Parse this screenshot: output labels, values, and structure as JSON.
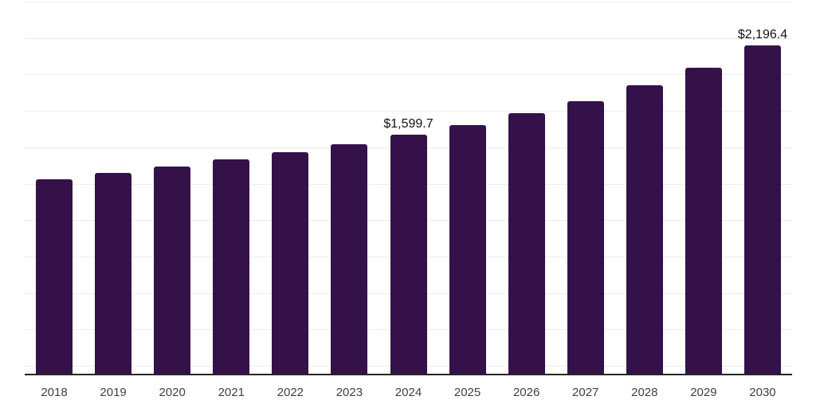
{
  "chart_data": {
    "type": "bar",
    "title": "",
    "xlabel": "",
    "ylabel": "",
    "categories": [
      "2018",
      "2019",
      "2020",
      "2021",
      "2022",
      "2023",
      "2024",
      "2025",
      "2026",
      "2027",
      "2028",
      "2029",
      "2030"
    ],
    "values": [
      1302.1,
      1348.5,
      1391.2,
      1438.9,
      1486.1,
      1539.0,
      1599.7,
      1667.0,
      1744.0,
      1826.5,
      1929.0,
      2051.0,
      2196.4
    ],
    "data_labels": [
      "",
      "",
      "",
      "",
      "",
      "",
      "$1,599.7",
      "",
      "",
      "",
      "",
      "",
      "$2,196.4"
    ],
    "ylim": [
      0,
      2490
    ],
    "grid": true,
    "gridline_count": 11,
    "legend": "none"
  },
  "colors": {
    "bar": "#351149",
    "gridline": "#ededed",
    "axis_line": "#262626",
    "tick_label": "#404040",
    "data_label": "#111111",
    "background": "#ffffff"
  }
}
